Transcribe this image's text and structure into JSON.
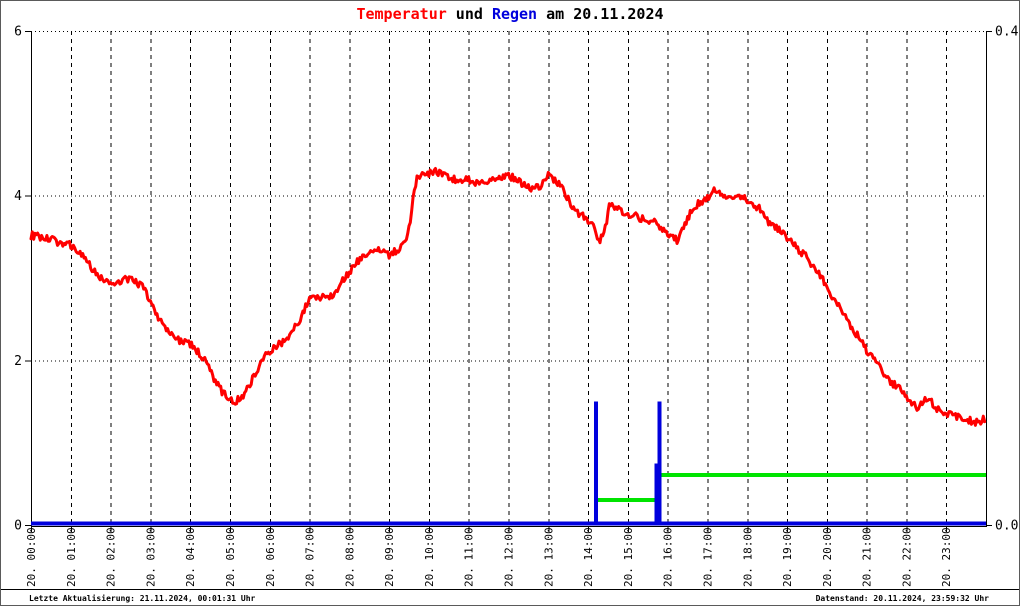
{
  "title": {
    "part_temperatur": "Temperatur",
    "part_und": " und ",
    "part_regen": "Regen",
    "part_rest": " am 20.11.2024"
  },
  "footer": {
    "left": "Letzte Aktualisierung: 21.11.2024, 00:01:31 Uhr",
    "right": "Datenstand: 20.11.2024, 23:59:32 Uhr"
  },
  "chart_data": {
    "type": "line",
    "title": "Temperatur und Regen am 20.11.2024",
    "date": "20.11.2024",
    "x_axis": {
      "min_hour": 0,
      "max_hour": 24,
      "tick_labels": [
        "20. 00:00",
        "20. 01:00",
        "20. 02:00",
        "20. 03:00",
        "20. 04:00",
        "20. 05:00",
        "20. 06:00",
        "20. 07:00",
        "20. 08:00",
        "20. 09:00",
        "20. 10:00",
        "20. 11:00",
        "20. 12:00",
        "20. 13:00",
        "20. 14:00",
        "20. 15:00",
        "20. 16:00",
        "20. 17:00",
        "20. 18:00",
        "20. 19:00",
        "20. 20:00",
        "20. 21:00",
        "20. 22:00",
        "20. 23:00"
      ]
    },
    "y_axis_left": {
      "series": "Temperatur",
      "min": 0,
      "max": 6,
      "tick_values": [
        0,
        2,
        4,
        6
      ],
      "tick_labels": [
        "0",
        "2",
        "4",
        "6"
      ]
    },
    "y_axis_right": {
      "series": "Regen",
      "min": 0,
      "max": 0.4,
      "tick_values": [
        0,
        0.4
      ],
      "tick_labels": [
        "0.0",
        "0.4"
      ]
    },
    "grid": {
      "horizontal_style": "dotted",
      "vertical_style": "dashed",
      "horizontal_at": [
        2,
        4,
        6
      ],
      "vertical_every_hour": true
    },
    "colors": {
      "temperature": "#ff0000",
      "rain": "#0000dd",
      "rain_accumulation": "#00e400",
      "grid": "#000000",
      "background": "#ffffff"
    },
    "temperature_points": [
      [
        0,
        3.52
      ],
      [
        0.2,
        3.5
      ],
      [
        0.4,
        3.48
      ],
      [
        0.6,
        3.45
      ],
      [
        0.8,
        3.42
      ],
      [
        1,
        3.4
      ],
      [
        1.2,
        3.32
      ],
      [
        1.4,
        3.2
      ],
      [
        1.6,
        3.08
      ],
      [
        1.8,
        2.98
      ],
      [
        2,
        2.93
      ],
      [
        2.2,
        2.96
      ],
      [
        2.4,
        2.99
      ],
      [
        2.6,
        2.96
      ],
      [
        2.8,
        2.9
      ],
      [
        3,
        2.72
      ],
      [
        3.2,
        2.52
      ],
      [
        3.4,
        2.37
      ],
      [
        3.6,
        2.28
      ],
      [
        3.8,
        2.23
      ],
      [
        4,
        2.2
      ],
      [
        4.2,
        2.1
      ],
      [
        4.4,
        1.97
      ],
      [
        4.6,
        1.78
      ],
      [
        4.8,
        1.62
      ],
      [
        5,
        1.53
      ],
      [
        5.1,
        1.5
      ],
      [
        5.3,
        1.55
      ],
      [
        5.5,
        1.72
      ],
      [
        5.7,
        1.9
      ],
      [
        5.9,
        2.07
      ],
      [
        6.1,
        2.16
      ],
      [
        6.3,
        2.22
      ],
      [
        6.5,
        2.3
      ],
      [
        6.7,
        2.45
      ],
      [
        6.9,
        2.65
      ],
      [
        7,
        2.73
      ],
      [
        7.2,
        2.77
      ],
      [
        7.4,
        2.78
      ],
      [
        7.6,
        2.8
      ],
      [
        7.8,
        2.95
      ],
      [
        8,
        3.08
      ],
      [
        8.2,
        3.2
      ],
      [
        8.4,
        3.28
      ],
      [
        8.6,
        3.32
      ],
      [
        8.8,
        3.33
      ],
      [
        9,
        3.28
      ],
      [
        9.2,
        3.33
      ],
      [
        9.4,
        3.42
      ],
      [
        9.5,
        3.6
      ],
      [
        9.6,
        3.95
      ],
      [
        9.7,
        4.2
      ],
      [
        9.8,
        4.28
      ],
      [
        10,
        4.27
      ],
      [
        10.2,
        4.29
      ],
      [
        10.4,
        4.25
      ],
      [
        10.6,
        4.2
      ],
      [
        10.8,
        4.18
      ],
      [
        11,
        4.2
      ],
      [
        11.2,
        4.15
      ],
      [
        11.4,
        4.18
      ],
      [
        11.6,
        4.2
      ],
      [
        11.8,
        4.22
      ],
      [
        12,
        4.24
      ],
      [
        12.2,
        4.2
      ],
      [
        12.4,
        4.12
      ],
      [
        12.6,
        4.08
      ],
      [
        12.8,
        4.12
      ],
      [
        13,
        4.25
      ],
      [
        13.2,
        4.18
      ],
      [
        13.4,
        4.05
      ],
      [
        13.6,
        3.85
      ],
      [
        13.8,
        3.77
      ],
      [
        14,
        3.7
      ],
      [
        14.15,
        3.6
      ],
      [
        14.3,
        3.44
      ],
      [
        14.45,
        3.65
      ],
      [
        14.55,
        3.9
      ],
      [
        14.7,
        3.85
      ],
      [
        14.9,
        3.8
      ],
      [
        15.1,
        3.77
      ],
      [
        15.3,
        3.73
      ],
      [
        15.5,
        3.7
      ],
      [
        15.7,
        3.67
      ],
      [
        15.9,
        3.57
      ],
      [
        16.1,
        3.48
      ],
      [
        16.25,
        3.46
      ],
      [
        16.4,
        3.62
      ],
      [
        16.6,
        3.82
      ],
      [
        16.8,
        3.92
      ],
      [
        17,
        3.98
      ],
      [
        17.15,
        4.06
      ],
      [
        17.3,
        4.02
      ],
      [
        17.45,
        3.97
      ],
      [
        17.6,
        4
      ],
      [
        17.75,
        4.02
      ],
      [
        17.9,
        3.97
      ],
      [
        18.1,
        3.9
      ],
      [
        18.3,
        3.85
      ],
      [
        18.5,
        3.7
      ],
      [
        18.7,
        3.62
      ],
      [
        18.9,
        3.53
      ],
      [
        19.1,
        3.44
      ],
      [
        19.3,
        3.33
      ],
      [
        19.5,
        3.25
      ],
      [
        19.7,
        3.12
      ],
      [
        19.9,
        2.98
      ],
      [
        20.1,
        2.8
      ],
      [
        20.3,
        2.67
      ],
      [
        20.5,
        2.5
      ],
      [
        20.7,
        2.35
      ],
      [
        20.9,
        2.2
      ],
      [
        21.1,
        2.05
      ],
      [
        21.3,
        1.93
      ],
      [
        21.5,
        1.8
      ],
      [
        21.7,
        1.7
      ],
      [
        21.9,
        1.62
      ],
      [
        22.1,
        1.5
      ],
      [
        22.3,
        1.4
      ],
      [
        22.45,
        1.52
      ],
      [
        22.55,
        1.55
      ],
      [
        22.7,
        1.43
      ],
      [
        22.9,
        1.38
      ],
      [
        23.1,
        1.34
      ],
      [
        23.3,
        1.32
      ],
      [
        23.5,
        1.28
      ],
      [
        23.7,
        1.25
      ],
      [
        23.85,
        1.24
      ],
      [
        23.98,
        1.3
      ]
    ],
    "rain_baseline_value": 0.0,
    "rain_spikes": [
      {
        "hour": 14.2,
        "value": 0.1
      },
      {
        "hour": 15.72,
        "value": 0.05
      },
      {
        "hour": 15.8,
        "value": 0.1
      }
    ],
    "rain_accumulation_segments": [
      {
        "from_hour": 14.2,
        "to_hour": 15.8,
        "value": 0.02
      },
      {
        "from_hour": 15.8,
        "to_hour": 24,
        "value": 0.04
      }
    ]
  }
}
